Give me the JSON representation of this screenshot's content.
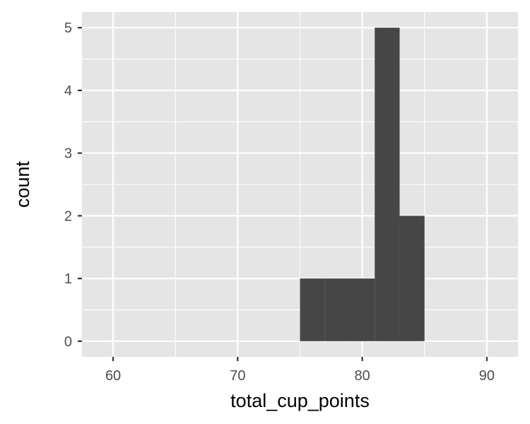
{
  "chart_data": {
    "type": "bar",
    "xlabel": "total_cup_points",
    "ylabel": "count",
    "xlim": [
      57.5,
      92.5
    ],
    "ylim": [
      -0.25,
      5.25
    ],
    "x_ticks": [
      60,
      70,
      80,
      90
    ],
    "x_minor_ticks": [
      65,
      75,
      85
    ],
    "y_ticks": [
      0,
      1,
      2,
      3,
      4,
      5
    ],
    "y_minor_ticks": [
      0.5,
      1.5,
      2.5,
      3.5,
      4.5
    ],
    "binwidth": 2,
    "bins": [
      {
        "x0": 75,
        "x1": 77,
        "count": 1
      },
      {
        "x0": 77,
        "x1": 79,
        "count": 1
      },
      {
        "x0": 79,
        "x1": 81,
        "count": 1
      },
      {
        "x0": 81,
        "x1": 83,
        "count": 5
      },
      {
        "x0": 83,
        "x1": 85,
        "count": 2
      }
    ],
    "grid": true,
    "legend": "none",
    "colors": {
      "panel": "#e5e5e5",
      "grid": "#ffffff",
      "bar": "#464646",
      "tick_text": "#4d4d4d",
      "title_text": "#000000"
    }
  }
}
